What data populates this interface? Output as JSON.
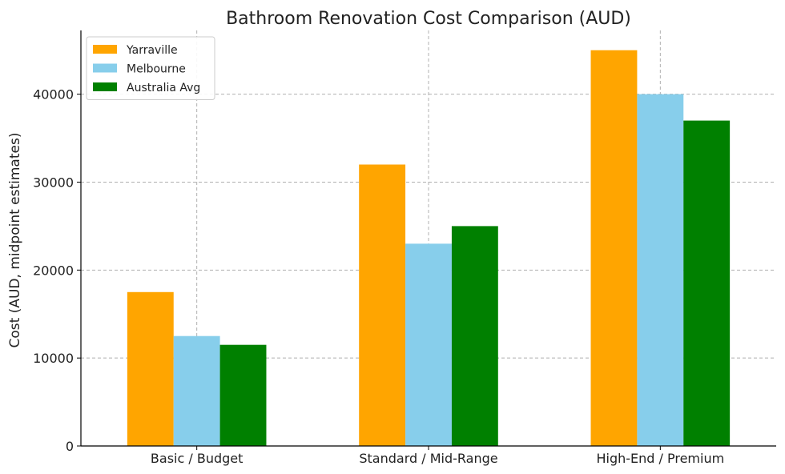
{
  "chart_data": {
    "type": "bar",
    "title": "Bathroom Renovation Cost Comparison (AUD)",
    "xlabel": "",
    "ylabel": "Cost (AUD, midpoint estimates)",
    "categories": [
      "Basic / Budget",
      "Standard / Mid-Range",
      "High-End / Premium"
    ],
    "series": [
      {
        "name": "Yarraville",
        "color": "#ffa500",
        "values": [
          17500,
          32000,
          45000
        ]
      },
      {
        "name": "Melbourne",
        "color": "#87ceeb",
        "values": [
          12500,
          23000,
          40000
        ]
      },
      {
        "name": "Australia Avg",
        "color": "#008000",
        "values": [
          11500,
          25000,
          37000
        ]
      }
    ],
    "ylim": [
      0,
      47250
    ],
    "yticks": [
      0,
      10000,
      20000,
      30000,
      40000
    ],
    "grid": true,
    "legend_position": "top-left"
  }
}
